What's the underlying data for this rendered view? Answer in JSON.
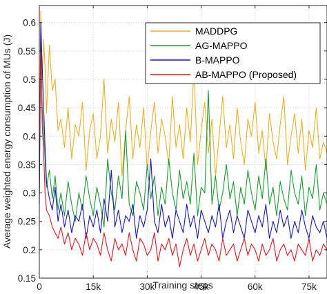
{
  "chart_data": {
    "type": "line",
    "xlabel": "Training steps",
    "ylabel": "Average weighted energy consumption of MUs (J)",
    "xlim": [
      0,
      80000
    ],
    "ylim": [
      0.15,
      0.63
    ],
    "x_ticks": [
      0,
      15000,
      30000,
      45000,
      60000,
      75000
    ],
    "x_tick_labels": [
      "0",
      "15k",
      "30k",
      "45k",
      "60k",
      "75k"
    ],
    "y_ticks": [
      0.15,
      0.2,
      0.25,
      0.3,
      0.35,
      0.4,
      0.45,
      0.5,
      0.55,
      0.6
    ],
    "y_tick_labels": [
      "0.15",
      "0.2",
      "0.25",
      "0.3",
      "0.35",
      "0.4",
      "0.45",
      "0.5",
      "0.55",
      "0.6"
    ],
    "grid": true,
    "legend_position": "top-right",
    "series": [
      {
        "name": "MADDPG",
        "color": "#EDB120",
        "x": [
          0,
          400,
          800,
          1200,
          1600,
          2000,
          2800,
          3600,
          4400,
          5200,
          6000,
          7000,
          8000,
          9000,
          10000,
          11000,
          12000,
          13000,
          14000,
          15000,
          16000,
          17000,
          18000,
          19000,
          20000,
          21000,
          22000,
          23000,
          24000,
          25000,
          26000,
          27000,
          28000,
          29000,
          30000,
          31000,
          32000,
          33000,
          34000,
          35000,
          36000,
          37000,
          38000,
          39000,
          40000,
          41000,
          42000,
          43000,
          44000,
          45000,
          46000,
          47000,
          48000,
          49000,
          50000,
          51000,
          52000,
          53000,
          54000,
          55000,
          56000,
          57000,
          58000,
          59000,
          60000,
          61000,
          62000,
          63000,
          64000,
          65000,
          66000,
          67000,
          68000,
          69000,
          70000,
          71000,
          72000,
          73000,
          74000,
          75000,
          76000,
          77000,
          78000,
          79000,
          80000
        ],
        "y": [
          0.36,
          0.62,
          0.5,
          0.57,
          0.52,
          0.44,
          0.56,
          0.48,
          0.5,
          0.41,
          0.43,
          0.38,
          0.45,
          0.36,
          0.42,
          0.4,
          0.46,
          0.34,
          0.41,
          0.44,
          0.36,
          0.4,
          0.5,
          0.37,
          0.43,
          0.39,
          0.46,
          0.33,
          0.41,
          0.47,
          0.36,
          0.42,
          0.38,
          0.45,
          0.34,
          0.41,
          0.46,
          0.37,
          0.43,
          0.4,
          0.35,
          0.47,
          0.38,
          0.42,
          0.36,
          0.45,
          0.39,
          0.52,
          0.35,
          0.41,
          0.46,
          0.37,
          0.43,
          0.33,
          0.4,
          0.47,
          0.38,
          0.42,
          0.36,
          0.45,
          0.39,
          0.35,
          0.43,
          0.4,
          0.46,
          0.37,
          0.41,
          0.34,
          0.44,
          0.39,
          0.36,
          0.42,
          0.47,
          0.35,
          0.4,
          0.44,
          0.37,
          0.43,
          0.34,
          0.41,
          0.38,
          0.45,
          0.36,
          0.39,
          0.37
        ]
      },
      {
        "name": "AG-MAPPO",
        "color": "#169E30",
        "x": [
          0,
          400,
          800,
          1200,
          1600,
          2000,
          2800,
          3600,
          4400,
          5200,
          6000,
          7000,
          8000,
          9000,
          10000,
          11000,
          12000,
          13000,
          14000,
          15000,
          16000,
          17000,
          18000,
          19000,
          20000,
          21000,
          22000,
          23000,
          24000,
          25000,
          26000,
          27000,
          28000,
          29000,
          30000,
          31000,
          32000,
          33000,
          34000,
          35000,
          36000,
          37000,
          38000,
          39000,
          40000,
          41000,
          42000,
          43000,
          44000,
          45000,
          46000,
          47000,
          48000,
          49000,
          50000,
          51000,
          52000,
          53000,
          54000,
          55000,
          56000,
          57000,
          58000,
          59000,
          60000,
          61000,
          62000,
          63000,
          64000,
          65000,
          66000,
          67000,
          68000,
          69000,
          70000,
          71000,
          72000,
          73000,
          74000,
          75000,
          76000,
          77000,
          78000,
          79000,
          80000
        ],
        "y": [
          0.3,
          0.59,
          0.45,
          0.4,
          0.36,
          0.31,
          0.34,
          0.29,
          0.33,
          0.27,
          0.3,
          0.26,
          0.32,
          0.28,
          0.25,
          0.3,
          0.27,
          0.33,
          0.29,
          0.26,
          0.31,
          0.28,
          0.24,
          0.36,
          0.3,
          0.27,
          0.33,
          0.29,
          0.41,
          0.28,
          0.26,
          0.32,
          0.3,
          0.27,
          0.35,
          0.29,
          0.33,
          0.26,
          0.31,
          0.28,
          0.36,
          0.3,
          0.27,
          0.34,
          0.29,
          0.32,
          0.28,
          0.37,
          0.26,
          0.31,
          0.3,
          0.48,
          0.28,
          0.33,
          0.27,
          0.3,
          0.35,
          0.29,
          0.32,
          0.26,
          0.31,
          0.28,
          0.34,
          0.3,
          0.27,
          0.33,
          0.29,
          0.36,
          0.28,
          0.31,
          0.26,
          0.32,
          0.29,
          0.27,
          0.34,
          0.3,
          0.28,
          0.33,
          0.26,
          0.31,
          0.29,
          0.35,
          0.27,
          0.3,
          0.28
        ]
      },
      {
        "name": "B-MAPPO",
        "color": "#1515C8",
        "x": [
          0,
          400,
          800,
          1200,
          1600,
          2000,
          2800,
          3600,
          4400,
          5200,
          6000,
          7000,
          8000,
          9000,
          10000,
          11000,
          12000,
          13000,
          14000,
          15000,
          16000,
          17000,
          18000,
          19000,
          20000,
          21000,
          22000,
          23000,
          24000,
          25000,
          26000,
          27000,
          28000,
          29000,
          30000,
          31000,
          32000,
          33000,
          34000,
          35000,
          36000,
          37000,
          38000,
          39000,
          40000,
          41000,
          42000,
          43000,
          44000,
          45000,
          46000,
          47000,
          48000,
          49000,
          50000,
          51000,
          52000,
          53000,
          54000,
          55000,
          56000,
          57000,
          58000,
          59000,
          60000,
          61000,
          62000,
          63000,
          64000,
          65000,
          66000,
          67000,
          68000,
          69000,
          70000,
          71000,
          72000,
          73000,
          74000,
          75000,
          76000,
          77000,
          78000,
          79000,
          80000
        ],
        "y": [
          0.28,
          0.6,
          0.52,
          0.45,
          0.38,
          0.32,
          0.29,
          0.27,
          0.31,
          0.25,
          0.28,
          0.24,
          0.27,
          0.23,
          0.26,
          0.25,
          0.28,
          0.22,
          0.26,
          0.24,
          0.27,
          0.23,
          0.29,
          0.25,
          0.34,
          0.24,
          0.27,
          0.23,
          0.26,
          0.25,
          0.28,
          0.22,
          0.26,
          0.24,
          0.27,
          0.36,
          0.25,
          0.23,
          0.28,
          0.24,
          0.26,
          0.22,
          0.27,
          0.25,
          0.23,
          0.28,
          0.24,
          0.26,
          0.22,
          0.27,
          0.25,
          0.23,
          0.26,
          0.24,
          0.28,
          0.22,
          0.25,
          0.27,
          0.23,
          0.26,
          0.24,
          0.22,
          0.27,
          0.25,
          0.23,
          0.26,
          0.24,
          0.28,
          0.22,
          0.25,
          0.23,
          0.27,
          0.24,
          0.26,
          0.22,
          0.25,
          0.23,
          0.27,
          0.24,
          0.22,
          0.26,
          0.24,
          0.23,
          0.25,
          0.22
        ]
      },
      {
        "name": "AB-MAPPO (Proposed)",
        "color": "#E8141E",
        "x": [
          0,
          400,
          800,
          1200,
          1600,
          2000,
          2800,
          3600,
          4400,
          5200,
          6000,
          7000,
          8000,
          9000,
          10000,
          11000,
          12000,
          13000,
          14000,
          15000,
          16000,
          17000,
          18000,
          19000,
          20000,
          21000,
          22000,
          23000,
          24000,
          25000,
          26000,
          27000,
          28000,
          29000,
          30000,
          31000,
          32000,
          33000,
          34000,
          35000,
          36000,
          37000,
          38000,
          39000,
          40000,
          41000,
          42000,
          43000,
          44000,
          45000,
          46000,
          47000,
          48000,
          49000,
          50000,
          51000,
          52000,
          53000,
          54000,
          55000,
          56000,
          57000,
          58000,
          59000,
          60000,
          61000,
          62000,
          63000,
          64000,
          65000,
          66000,
          67000,
          68000,
          69000,
          70000,
          71000,
          72000,
          73000,
          74000,
          75000,
          76000,
          77000,
          78000,
          79000,
          80000
        ],
        "y": [
          0.38,
          0.55,
          0.42,
          0.37,
          0.3,
          0.27,
          0.26,
          0.24,
          0.23,
          0.22,
          0.24,
          0.21,
          0.23,
          0.2,
          0.22,
          0.21,
          0.19,
          0.23,
          0.2,
          0.22,
          0.21,
          0.19,
          0.23,
          0.2,
          0.18,
          0.22,
          0.2,
          0.21,
          0.19,
          0.23,
          0.2,
          0.18,
          0.22,
          0.21,
          0.19,
          0.2,
          0.23,
          0.18,
          0.21,
          0.2,
          0.22,
          0.19,
          0.21,
          0.17,
          0.2,
          0.22,
          0.19,
          0.21,
          0.18,
          0.2,
          0.22,
          0.19,
          0.21,
          0.2,
          0.18,
          0.22,
          0.19,
          0.2,
          0.21,
          0.18,
          0.2,
          0.22,
          0.19,
          0.21,
          0.2,
          0.18,
          0.21,
          0.19,
          0.2,
          0.22,
          0.18,
          0.2,
          0.21,
          0.19,
          0.2,
          0.18,
          0.21,
          0.2,
          0.19,
          0.22,
          0.18,
          0.2,
          0.19,
          0.21,
          0.2
        ]
      }
    ]
  }
}
